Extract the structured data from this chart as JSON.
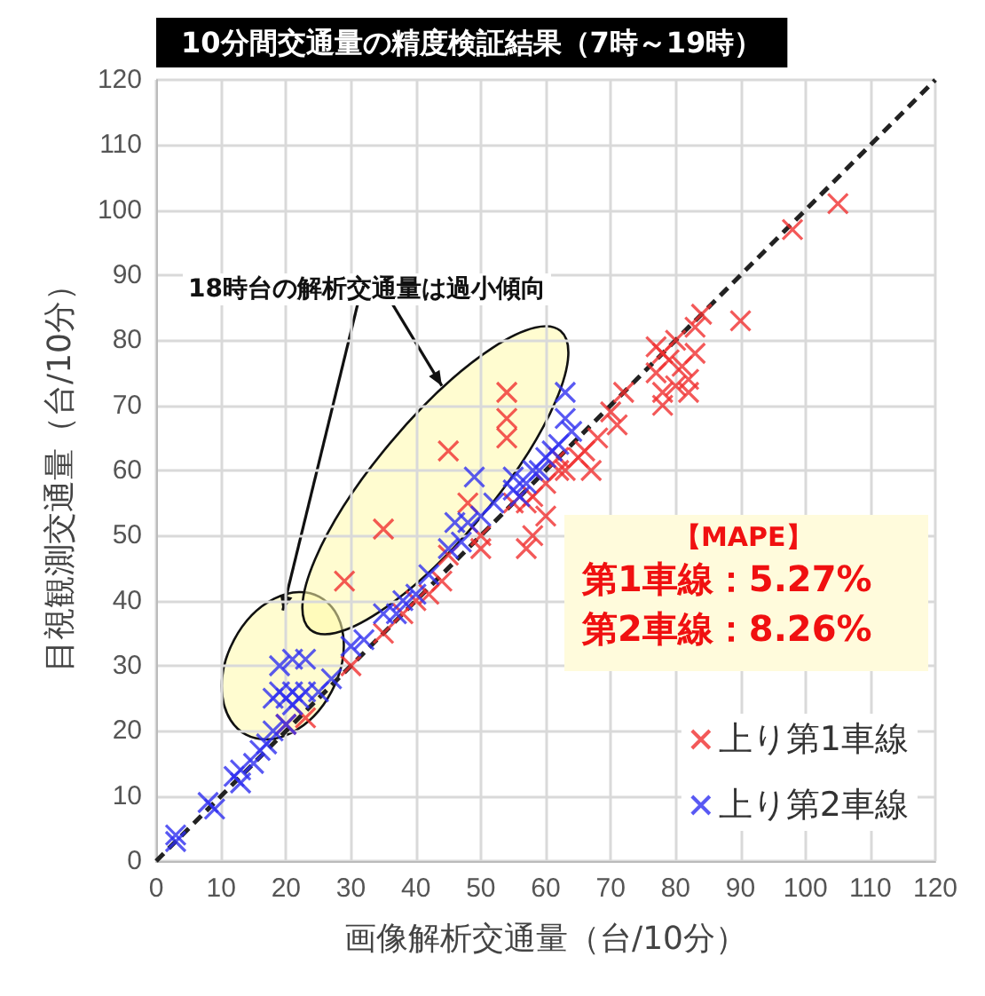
{
  "chart_data": {
    "type": "scatter",
    "title": "10分間交通量の精度検証結果（7時～19時）",
    "xlabel": "画像解析交通量（台/10分）",
    "ylabel": "目視観測交通量（台/10分）",
    "annotations": [
      "18時台の解析交通量は過小傾向",
      "【MAPE】",
      "第1車線：5.27%",
      "第2車線：8.26%"
    ],
    "xlim": [
      0,
      120
    ],
    "ylim": [
      0,
      120
    ],
    "xticks": [
      0,
      10,
      20,
      30,
      40,
      50,
      60,
      70,
      80,
      90,
      100,
      110,
      120
    ],
    "yticks": [
      0,
      10,
      20,
      30,
      40,
      50,
      60,
      70,
      80,
      90,
      100,
      110,
      120
    ],
    "grid": true,
    "legend": "bottom right",
    "marker": "cross",
    "series": [
      {
        "name": "上り第1車線",
        "color": "#f03030",
        "x": [
          105,
          98,
          90,
          84,
          83,
          80,
          78,
          77,
          79,
          81,
          80,
          78,
          82,
          77,
          83,
          78,
          82,
          72,
          70,
          71,
          68,
          66,
          65,
          67,
          63,
          60,
          58,
          57,
          55,
          62,
          54,
          54,
          54,
          45,
          35,
          29,
          48,
          50,
          45,
          44,
          42,
          40,
          38,
          35,
          20,
          23,
          30,
          60,
          62,
          58,
          57,
          50
        ],
        "values": [
          101,
          97,
          83,
          84,
          82,
          80,
          78,
          79,
          77,
          76,
          73,
          72,
          74,
          75,
          78,
          70,
          72,
          72,
          69,
          67,
          65,
          63,
          62,
          60,
          60,
          58,
          56,
          55,
          55,
          62,
          72,
          68,
          65,
          63,
          51,
          43,
          55,
          50,
          47,
          43,
          41,
          40,
          38,
          35,
          21,
          22,
          30,
          53,
          60,
          50,
          48,
          48
        ]
      },
      {
        "name": "上り第2車線",
        "color": "#3030f0",
        "x": [
          3,
          3,
          8,
          9,
          12,
          13,
          13,
          16,
          17,
          15,
          18,
          20,
          21,
          18,
          19,
          20,
          21,
          22,
          23,
          19,
          21,
          23,
          25,
          27,
          30,
          32,
          35,
          37,
          38,
          40,
          42,
          45,
          47,
          48,
          50,
          52,
          55,
          55,
          57,
          58,
          60,
          61,
          63,
          63,
          64,
          62,
          49,
          46,
          59,
          56
        ],
        "values": [
          4,
          3,
          9,
          8,
          13,
          14,
          12,
          17,
          18,
          15,
          20,
          21,
          24,
          25,
          26,
          25,
          26,
          25,
          26,
          30,
          31,
          31,
          26,
          28,
          33,
          34,
          38,
          38,
          40,
          41,
          44,
          48,
          49,
          52,
          53,
          55,
          57,
          59,
          58,
          60,
          62,
          63,
          72,
          68,
          66,
          64,
          59,
          52,
          60,
          56
        ]
      },
      {
        "type": "line",
        "color": "#222222",
        "line_style": "dashed",
        "marker": "none",
        "x": [
          0,
          120
        ],
        "values": [
          0,
          120
        ]
      }
    ]
  }
}
